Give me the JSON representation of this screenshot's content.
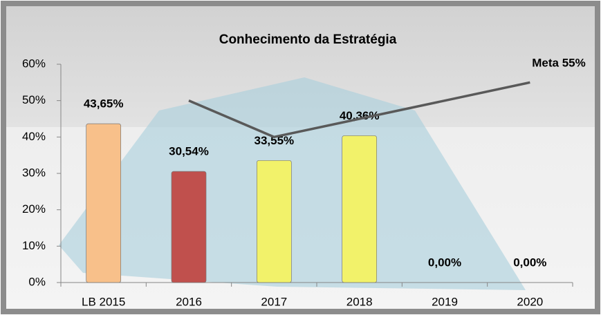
{
  "chart_data": {
    "type": "bar",
    "title": "Conhecimento da Estratégia",
    "categories": [
      "LB 2015",
      "2016",
      "2017",
      "2018",
      "2019",
      "2020"
    ],
    "series": [
      {
        "type": "bar",
        "colors": [
          "#f8c08a",
          "#c0504d",
          "#f2f26a",
          "#f2f26a",
          "#f2f26a",
          "#f2f26a"
        ],
        "values": [
          43.65,
          30.54,
          33.55,
          40.36,
          0,
          0
        ],
        "value_labels": [
          "43,65%",
          "30,54%",
          "33,55%",
          "40,36%",
          "0,00%",
          "0,00%"
        ]
      },
      {
        "type": "line",
        "color": "#595959",
        "values": [
          null,
          50,
          40,
          45,
          50,
          55
        ]
      }
    ],
    "annotation": "Meta 55%",
    "ylim": [
      0,
      60
    ],
    "yticks": [
      {
        "value": 0,
        "label": "0%"
      },
      {
        "value": 10,
        "label": "10%"
      },
      {
        "value": 20,
        "label": "20%"
      },
      {
        "value": 30,
        "label": "30%"
      },
      {
        "value": 40,
        "label": "40%"
      },
      {
        "value": 50,
        "label": "50%"
      },
      {
        "value": 60,
        "label": "60%"
      }
    ]
  }
}
